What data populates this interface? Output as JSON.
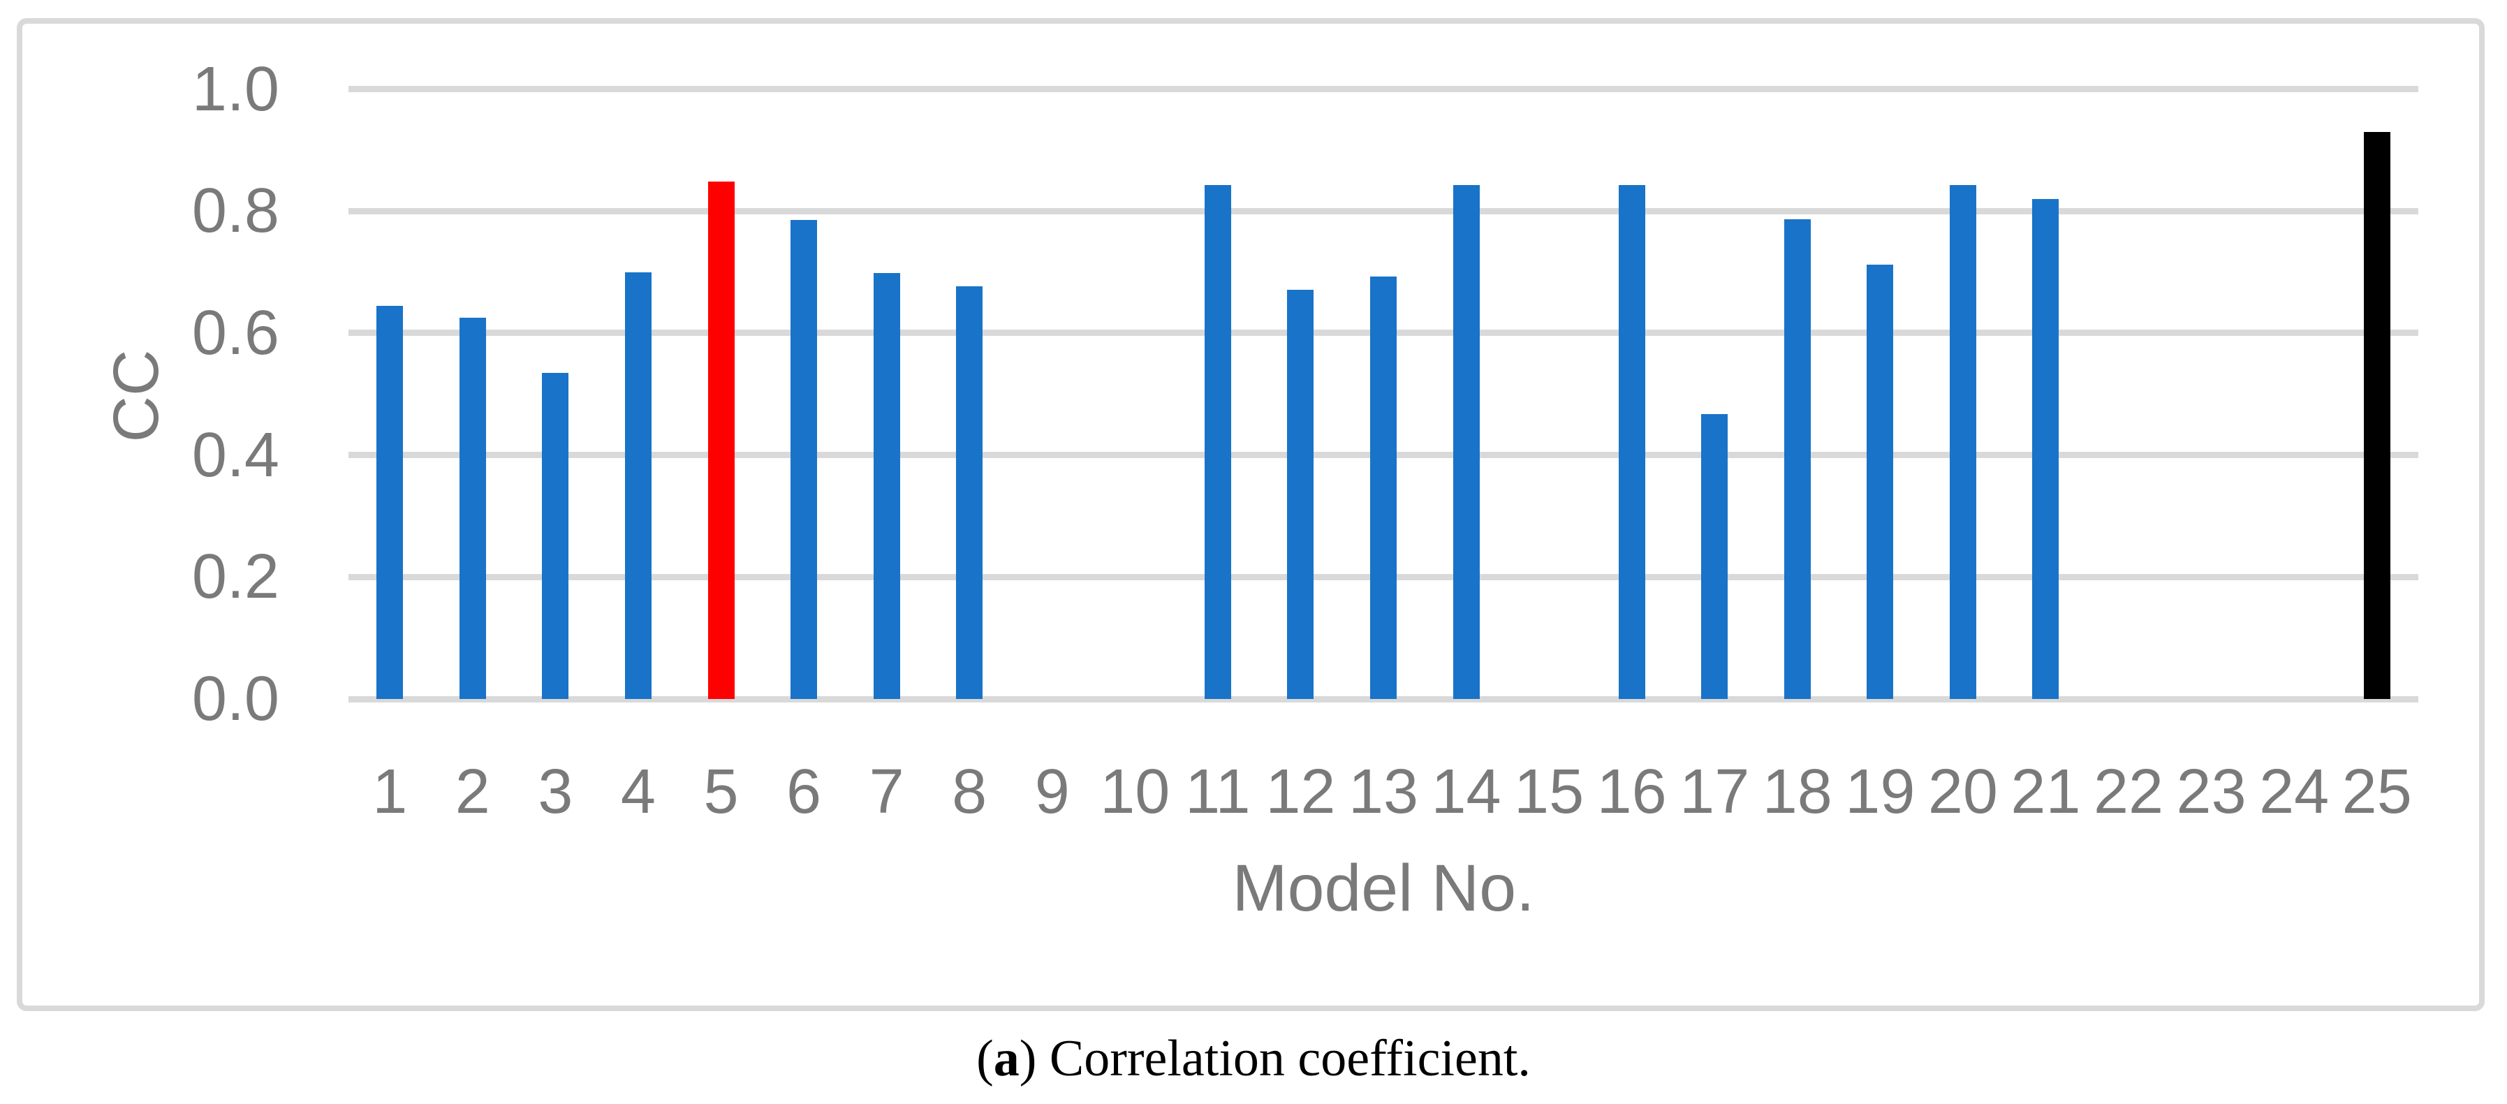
{
  "figure": {
    "caption": {
      "open_paren": "(",
      "panel_label": "a",
      "rest": ") Correlation coefficient."
    }
  },
  "chart_data": {
    "type": "bar",
    "title": "",
    "xlabel": "Model No.",
    "ylabel": "CC",
    "categories": [
      1,
      2,
      3,
      4,
      5,
      6,
      7,
      8,
      9,
      10,
      11,
      12,
      13,
      14,
      15,
      16,
      17,
      18,
      19,
      20,
      21,
      22,
      23,
      24,
      25
    ],
    "values": [
      0.645,
      0.625,
      0.535,
      0.7,
      0.848,
      0.785,
      0.698,
      0.677,
      0,
      0,
      0.843,
      0.671,
      0.693,
      0.843,
      0,
      0.843,
      0.467,
      0.787,
      0.712,
      0.843,
      0.82,
      0,
      0,
      0,
      0.93
    ],
    "bar_colors": [
      "#1973C8",
      "#1973C8",
      "#1973C8",
      "#1973C8",
      "#FF0000",
      "#1973C8",
      "#1973C8",
      "#1973C8",
      "#1973C8",
      "#1973C8",
      "#1973C8",
      "#1973C8",
      "#1973C8",
      "#1973C8",
      "#1973C8",
      "#1973C8",
      "#1973C8",
      "#1973C8",
      "#1973C8",
      "#1973C8",
      "#1973C8",
      "#1973C8",
      "#1973C8",
      "#1973C8",
      "#000000"
    ],
    "missing_categories": [
      9,
      10,
      15,
      22,
      23,
      24
    ],
    "highlighted_red_bar": 5,
    "highlighted_black_bar": 25,
    "ylim": [
      0.0,
      1.0
    ],
    "ytick_labels": [
      "0.0",
      "0.2",
      "0.4",
      "0.6",
      "0.8",
      "1.0"
    ],
    "ytick_values": [
      0.0,
      0.2,
      0.4,
      0.6,
      0.8,
      1.0
    ],
    "grid": "horizontal",
    "legend": "none",
    "colors": {
      "default_bar": "#1973C8",
      "highlight_red": "#FF0000",
      "highlight_black": "#000000",
      "gridline": "#D9D9D9",
      "frame_border": "#D9D9D9",
      "axis_text": "#7A7A7A",
      "caption_text": "#000000"
    }
  }
}
